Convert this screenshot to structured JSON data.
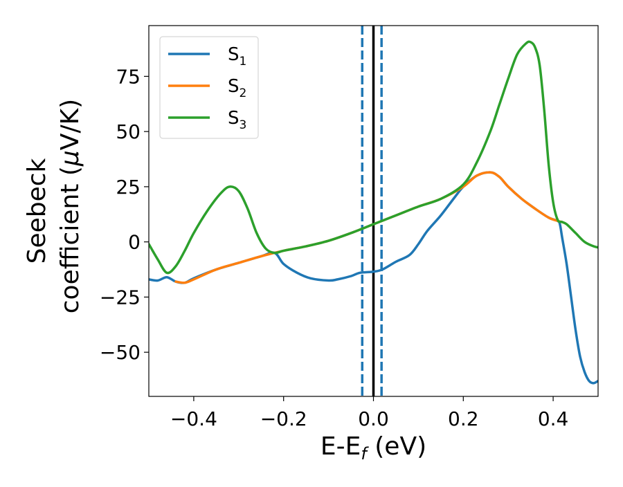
{
  "chart_data": {
    "type": "line",
    "xlabel": {
      "base": "E-E",
      "sub": "f",
      "suffix": " (eV)"
    },
    "ylabel_line1": "Seebeck",
    "ylabel_line2_prefix": "coefficient  (",
    "ylabel_mu": "μ",
    "ylabel_line2_suffix": "V/K)",
    "xlim": [
      -0.5,
      0.5
    ],
    "ylim": [
      -70,
      98
    ],
    "xticks": [
      -0.4,
      -0.2,
      0.0,
      0.2,
      0.4
    ],
    "xtick_labels": [
      "−0.4",
      "−0.2",
      "0.0",
      "0.2",
      "0.4"
    ],
    "yticks": [
      -50,
      -25,
      0,
      25,
      50,
      75
    ],
    "ytick_labels": [
      "−50",
      "−25",
      "0",
      "25",
      "50",
      "75"
    ],
    "legend_position": "top-left",
    "series": [
      {
        "name": "S",
        "sub": "1",
        "color": "#1f77b4",
        "points": [
          [
            -0.5,
            -17
          ],
          [
            -0.48,
            -17.5
          ],
          [
            -0.46,
            -16
          ],
          [
            -0.44,
            -18
          ],
          [
            -0.42,
            -18.5
          ],
          [
            -0.4,
            -16.5
          ],
          [
            -0.35,
            -12.5
          ],
          [
            -0.3,
            -9.5
          ],
          [
            -0.25,
            -6.5
          ],
          [
            -0.22,
            -5
          ],
          [
            -0.2,
            -10
          ],
          [
            -0.17,
            -14
          ],
          [
            -0.14,
            -16.5
          ],
          [
            -0.1,
            -17.5
          ],
          [
            -0.08,
            -17
          ],
          [
            -0.05,
            -15.5
          ],
          [
            -0.03,
            -14
          ],
          [
            0.0,
            -13.5
          ],
          [
            0.02,
            -12.5
          ],
          [
            0.05,
            -9
          ],
          [
            0.08,
            -6
          ],
          [
            0.1,
            -1
          ],
          [
            0.12,
            5
          ],
          [
            0.15,
            12
          ],
          [
            0.18,
            20
          ],
          [
            0.2,
            25
          ],
          [
            0.23,
            30
          ],
          [
            0.26,
            31.5
          ],
          [
            0.28,
            29.5
          ],
          [
            0.3,
            25
          ],
          [
            0.33,
            19.5
          ],
          [
            0.36,
            15
          ],
          [
            0.39,
            11
          ],
          [
            0.41,
            9.5
          ],
          [
            0.415,
            8
          ],
          [
            0.42,
            2
          ],
          [
            0.43,
            -10
          ],
          [
            0.44,
            -25
          ],
          [
            0.45,
            -40
          ],
          [
            0.46,
            -52
          ],
          [
            0.47,
            -59
          ],
          [
            0.48,
            -63
          ],
          [
            0.49,
            -64
          ],
          [
            0.5,
            -63
          ]
        ]
      },
      {
        "name": "S",
        "sub": "2",
        "color": "#ff7f0e",
        "points": [
          [
            -0.44,
            -18
          ],
          [
            -0.42,
            -18.5
          ],
          [
            -0.4,
            -17
          ],
          [
            -0.35,
            -12.5
          ],
          [
            -0.3,
            -9.5
          ],
          [
            -0.25,
            -6.5
          ],
          [
            -0.2,
            -4
          ],
          [
            -0.15,
            -2
          ],
          [
            -0.1,
            0.5
          ],
          [
            -0.05,
            4
          ],
          [
            0.0,
            8
          ],
          [
            0.05,
            12
          ],
          [
            0.1,
            16
          ],
          [
            0.15,
            19.5
          ],
          [
            0.2,
            25
          ],
          [
            0.23,
            30
          ],
          [
            0.26,
            31.5
          ],
          [
            0.28,
            29.5
          ],
          [
            0.3,
            25
          ],
          [
            0.33,
            19.5
          ],
          [
            0.36,
            15
          ],
          [
            0.39,
            11
          ],
          [
            0.41,
            9.5
          ],
          [
            0.42,
            9
          ]
        ]
      },
      {
        "name": "S",
        "sub": "3",
        "color": "#2ca02c",
        "points": [
          [
            -0.5,
            -1
          ],
          [
            -0.48,
            -8
          ],
          [
            -0.46,
            -14
          ],
          [
            -0.44,
            -11
          ],
          [
            -0.42,
            -4
          ],
          [
            -0.4,
            4
          ],
          [
            -0.37,
            14
          ],
          [
            -0.34,
            22
          ],
          [
            -0.32,
            25
          ],
          [
            -0.3,
            23
          ],
          [
            -0.28,
            15
          ],
          [
            -0.26,
            4
          ],
          [
            -0.24,
            -3
          ],
          [
            -0.22,
            -5
          ],
          [
            -0.2,
            -4
          ],
          [
            -0.15,
            -2
          ],
          [
            -0.1,
            0.5
          ],
          [
            -0.05,
            4
          ],
          [
            0.0,
            8
          ],
          [
            0.05,
            12
          ],
          [
            0.1,
            16
          ],
          [
            0.15,
            19.5
          ],
          [
            0.2,
            26
          ],
          [
            0.23,
            36
          ],
          [
            0.26,
            50
          ],
          [
            0.28,
            62
          ],
          [
            0.3,
            74
          ],
          [
            0.32,
            85
          ],
          [
            0.34,
            90
          ],
          [
            0.35,
            90.5
          ],
          [
            0.36,
            88
          ],
          [
            0.37,
            80
          ],
          [
            0.38,
            60
          ],
          [
            0.39,
            35
          ],
          [
            0.4,
            18
          ],
          [
            0.41,
            10
          ],
          [
            0.42,
            9
          ],
          [
            0.43,
            8
          ],
          [
            0.45,
            4
          ],
          [
            0.47,
            0
          ],
          [
            0.49,
            -2
          ],
          [
            0.5,
            -2.5
          ]
        ]
      }
    ],
    "vlines": [
      {
        "x": 0.0,
        "color": "#000000",
        "style": "solid"
      },
      {
        "x": -0.025,
        "color": "#1f77b4",
        "style": "dashed"
      },
      {
        "x": 0.018,
        "color": "#1f77b4",
        "style": "dashed"
      }
    ]
  }
}
